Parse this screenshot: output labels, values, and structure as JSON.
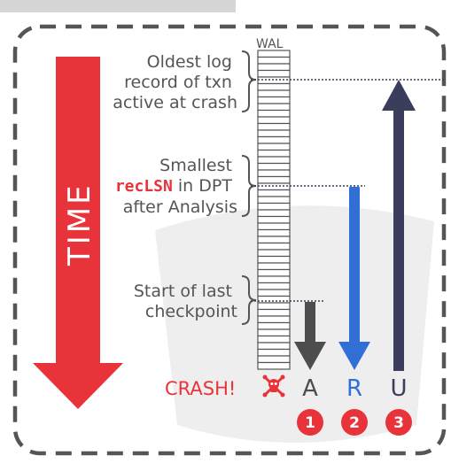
{
  "wal_label": "WAL",
  "labels": {
    "oldest": [
      "Oldest log",
      "record of txn",
      "active at crash"
    ],
    "reclsn_line1": "Smallest",
    "reclsn_code": "recLSN",
    "reclsn_rest": " in DPT",
    "reclsn_line3": "after Analysis",
    "checkpoint": [
      "Start of last",
      "checkpoint"
    ]
  },
  "time_label": "TIME",
  "crash_label": "CRASH!",
  "crash_icon": "skull-crossbones-icon",
  "phases": [
    {
      "letter": "A",
      "number": "1",
      "color": "#4d4d4d"
    },
    {
      "letter": "R",
      "number": "2",
      "color": "#2f6fd6"
    },
    {
      "letter": "U",
      "number": "3",
      "color": "#3a3d5c"
    }
  ],
  "colors": {
    "time_arrow": "#e8333a",
    "badge": "#e8333a",
    "border": "#555555",
    "text": "#555555"
  }
}
